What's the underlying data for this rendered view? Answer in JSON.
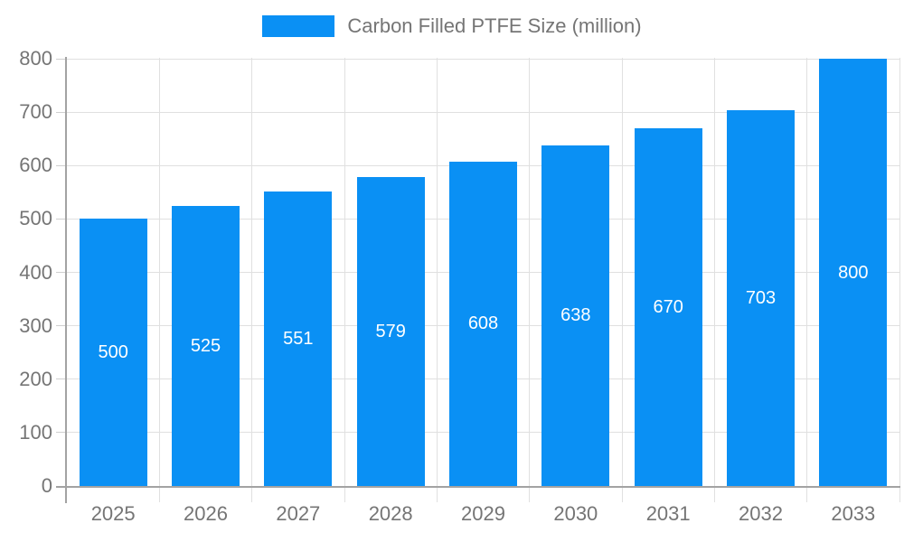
{
  "legend": {
    "items": [
      {
        "label": "Carbon Filled PTFE Size (million)",
        "color": "#0a90f4"
      }
    ]
  },
  "chart_data": {
    "type": "bar",
    "title": "Carbon Filled PTFE Size (million)",
    "categories": [
      "2025",
      "2026",
      "2027",
      "2028",
      "2029",
      "2030",
      "2031",
      "2032",
      "2033"
    ],
    "values": [
      500,
      525,
      551,
      579,
      608,
      638,
      670,
      703,
      800
    ],
    "xlabel": "",
    "ylabel": "",
    "ylim": [
      0,
      800
    ],
    "ytick_step": 100,
    "yticks": [
      0,
      100,
      200,
      300,
      400,
      500,
      600,
      700,
      800
    ],
    "grid": true,
    "legend_position": "top",
    "value_labels": "inside-center",
    "colors": {
      "bar": "#0a90f4",
      "bar_value_text": "#ffffff",
      "axis_text": "#757575",
      "grid_line": "#e0e0e0",
      "tick_line": "#cfcfcf",
      "axis_line": "#a3a3a3",
      "background": "#ffffff"
    }
  }
}
